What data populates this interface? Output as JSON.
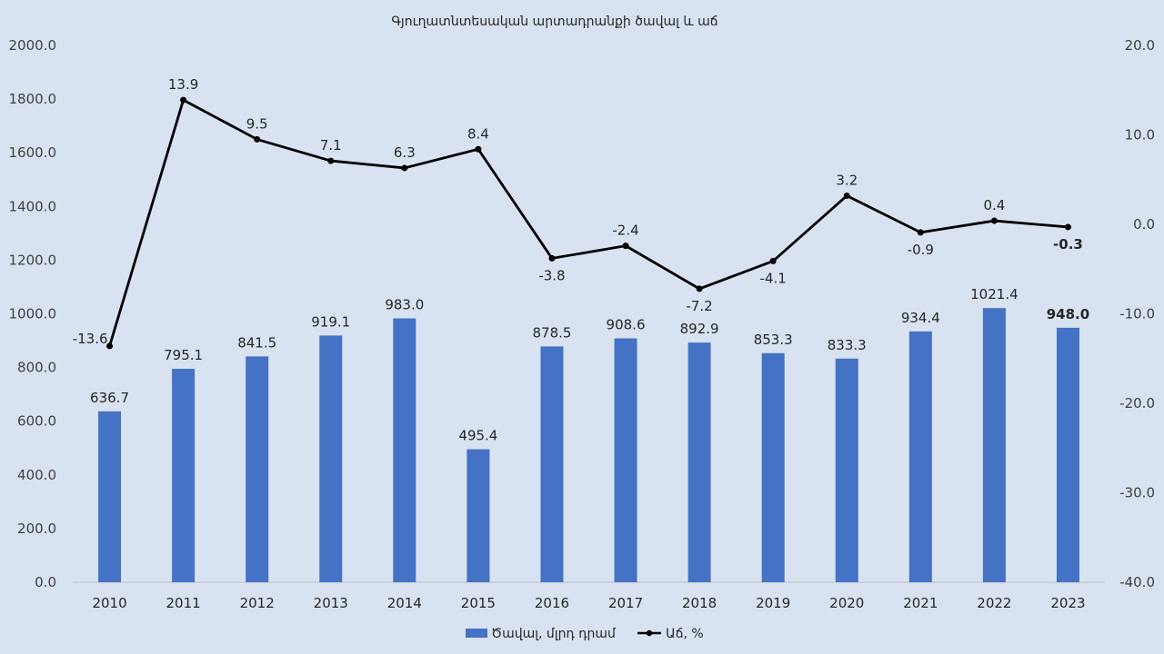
{
  "chart_data": {
    "type": "bar",
    "title": "Գյուղատնտեսական արտադրանքի ծավալ և աճ",
    "categories": [
      "2010",
      "2011",
      "2012",
      "2013",
      "2014",
      "2015",
      "2016",
      "2017",
      "2018",
      "2019",
      "2020",
      "2021",
      "2022",
      "2023"
    ],
    "series": [
      {
        "name": "Ծավալ, մլրդ դրամ",
        "type": "bar",
        "axis": "left",
        "color": "#4472c4",
        "values": [
          636.7,
          795.1,
          841.5,
          919.1,
          983.0,
          495.4,
          878.5,
          908.6,
          892.9,
          853.3,
          833.3,
          934.4,
          1021.4,
          948.0
        ],
        "labels": [
          "636.7",
          "795.1",
          "841.5",
          "919.1",
          "983.0",
          "495.4",
          "878.5",
          "908.6",
          "892.9",
          "853.3",
          "833.3",
          "934.4",
          "1021.4",
          "948.0"
        ],
        "highlight_index": 13,
        "highlight_color": "#ff0000"
      },
      {
        "name": "Աճ, %",
        "type": "line",
        "axis": "right",
        "color": "#000000",
        "values": [
          -13.6,
          13.9,
          9.5,
          7.1,
          6.3,
          8.4,
          -3.8,
          -2.4,
          -7.2,
          -4.1,
          3.2,
          -0.9,
          0.4,
          -0.3
        ],
        "labels": [
          "-13.6",
          "13.9",
          "9.5",
          "7.1",
          "6.3",
          "8.4",
          "-3.8",
          "-2.4",
          "-7.2",
          "-4.1",
          "3.2",
          "-0.9",
          "0.4",
          "-0.3"
        ],
        "label_position": [
          "left",
          "above",
          "above",
          "above",
          "above",
          "above",
          "below",
          "above",
          "below",
          "below",
          "above",
          "below",
          "above",
          "below"
        ],
        "highlight_index": 13,
        "highlight_color": "#ff0000"
      }
    ],
    "y_left": {
      "ylim": [
        0,
        2000
      ],
      "ticks": [
        "0.0",
        "200.0",
        "400.0",
        "600.0",
        "800.0",
        "1000.0",
        "1200.0",
        "1400.0",
        "1600.0",
        "1800.0",
        "2000.0"
      ]
    },
    "y_right": {
      "ylim": [
        -40,
        20
      ],
      "ticks": [
        "-40.0",
        "-30.0",
        "-20.0",
        "-10.0",
        "0.0",
        "10.0",
        "20.0"
      ]
    },
    "grid": false,
    "legend_position": "bottom"
  }
}
